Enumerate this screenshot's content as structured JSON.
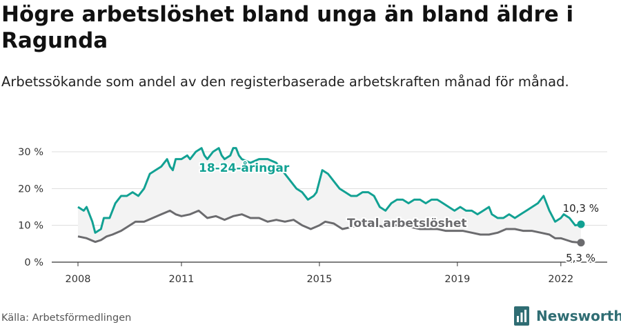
{
  "title": "Högre arbetslöshet bland unga än bland äldre i Ragunda",
  "subtitle": "Arbetssökande som andel av den registerbaserade arbetskraften månad för månad.",
  "source": "Källa: Arbetsförmedlingen",
  "brand": "Newsworthy",
  "colors": {
    "youth": "#12a193",
    "total": "#6b6b6e",
    "band": "#f3f3f3",
    "grid": "#dddddd",
    "brand": "#2f6d73"
  },
  "chart_data": {
    "type": "line",
    "x_range": [
      "2008-01",
      "2022-08"
    ],
    "x_ticks": [
      "2008",
      "2011",
      "2015",
      "2019",
      "2022"
    ],
    "ylim": [
      0,
      30
    ],
    "y_ticks": [
      "0 %",
      "10 %",
      "20 %",
      "30 %"
    ],
    "grid": true,
    "series": [
      {
        "name": "18-24-åringar",
        "end_label": "10,3 %",
        "points": [
          [
            "2008-01",
            15
          ],
          [
            "2008-03",
            14
          ],
          [
            "2008-04",
            15
          ],
          [
            "2008-06",
            11
          ],
          [
            "2008-07",
            8
          ],
          [
            "2008-09",
            9
          ],
          [
            "2008-10",
            12
          ],
          [
            "2008-12",
            12
          ],
          [
            "2009-02",
            16
          ],
          [
            "2009-03",
            17
          ],
          [
            "2009-04",
            18
          ],
          [
            "2009-06",
            18
          ],
          [
            "2009-08",
            19
          ],
          [
            "2009-10",
            18
          ],
          [
            "2009-12",
            20
          ],
          [
            "2010-02",
            24
          ],
          [
            "2010-04",
            25
          ],
          [
            "2010-06",
            26
          ],
          [
            "2010-08",
            28
          ],
          [
            "2010-09",
            26
          ],
          [
            "2010-10",
            25
          ],
          [
            "2010-11",
            28
          ],
          [
            "2011-01",
            28
          ],
          [
            "2011-03",
            29
          ],
          [
            "2011-04",
            28
          ],
          [
            "2011-06",
            30
          ],
          [
            "2011-08",
            31
          ],
          [
            "2011-09",
            29
          ],
          [
            "2011-10",
            28
          ],
          [
            "2011-12",
            30
          ],
          [
            "2012-02",
            31
          ],
          [
            "2012-03",
            29
          ],
          [
            "2012-04",
            28
          ],
          [
            "2012-06",
            29
          ],
          [
            "2012-07",
            31
          ],
          [
            "2012-08",
            31
          ],
          [
            "2012-09",
            29
          ],
          [
            "2012-10",
            28
          ],
          [
            "2013-01",
            27
          ],
          [
            "2013-04",
            28
          ],
          [
            "2013-07",
            28
          ],
          [
            "2013-10",
            27
          ],
          [
            "2014-01",
            24
          ],
          [
            "2014-03",
            22
          ],
          [
            "2014-05",
            20
          ],
          [
            "2014-07",
            19
          ],
          [
            "2014-09",
            17
          ],
          [
            "2014-11",
            18
          ],
          [
            "2014-12",
            19
          ],
          [
            "2015-01",
            22
          ],
          [
            "2015-02",
            25
          ],
          [
            "2015-04",
            24
          ],
          [
            "2015-06",
            22
          ],
          [
            "2015-08",
            20
          ],
          [
            "2015-10",
            19
          ],
          [
            "2015-12",
            18
          ],
          [
            "2016-02",
            18
          ],
          [
            "2016-04",
            19
          ],
          [
            "2016-06",
            19
          ],
          [
            "2016-08",
            18
          ],
          [
            "2016-10",
            15
          ],
          [
            "2016-12",
            14
          ],
          [
            "2017-02",
            16
          ],
          [
            "2017-04",
            17
          ],
          [
            "2017-06",
            17
          ],
          [
            "2017-08",
            16
          ],
          [
            "2017-10",
            17
          ],
          [
            "2017-12",
            17
          ],
          [
            "2018-02",
            16
          ],
          [
            "2018-04",
            17
          ],
          [
            "2018-06",
            17
          ],
          [
            "2018-08",
            16
          ],
          [
            "2018-10",
            15
          ],
          [
            "2018-12",
            14
          ],
          [
            "2019-02",
            15
          ],
          [
            "2019-04",
            14
          ],
          [
            "2019-06",
            14
          ],
          [
            "2019-08",
            13
          ],
          [
            "2019-10",
            14
          ],
          [
            "2019-12",
            15
          ],
          [
            "2020-01",
            13
          ],
          [
            "2020-03",
            12
          ],
          [
            "2020-05",
            12
          ],
          [
            "2020-07",
            13
          ],
          [
            "2020-09",
            12
          ],
          [
            "2020-11",
            13
          ],
          [
            "2021-01",
            14
          ],
          [
            "2021-03",
            15
          ],
          [
            "2021-05",
            16
          ],
          [
            "2021-06",
            17
          ],
          [
            "2021-07",
            18
          ],
          [
            "2021-09",
            14
          ],
          [
            "2021-11",
            11
          ],
          [
            "2022-01",
            12
          ],
          [
            "2022-02",
            13
          ],
          [
            "2022-04",
            12
          ],
          [
            "2022-06",
            10
          ],
          [
            "2022-08",
            10.3
          ]
        ]
      },
      {
        "name": "Total arbetslöshet",
        "end_label": "5,3 %",
        "points": [
          [
            "2008-01",
            7
          ],
          [
            "2008-04",
            6.5
          ],
          [
            "2008-07",
            5.5
          ],
          [
            "2008-09",
            6
          ],
          [
            "2008-11",
            7
          ],
          [
            "2009-01",
            7.5
          ],
          [
            "2009-04",
            8.5
          ],
          [
            "2009-06",
            9.5
          ],
          [
            "2009-09",
            11
          ],
          [
            "2009-12",
            11
          ],
          [
            "2010-03",
            12
          ],
          [
            "2010-06",
            13
          ],
          [
            "2010-09",
            14
          ],
          [
            "2010-11",
            13
          ],
          [
            "2011-01",
            12.5
          ],
          [
            "2011-04",
            13
          ],
          [
            "2011-07",
            14
          ],
          [
            "2011-10",
            12
          ],
          [
            "2012-01",
            12.5
          ],
          [
            "2012-04",
            11.5
          ],
          [
            "2012-07",
            12.5
          ],
          [
            "2012-10",
            13
          ],
          [
            "2013-01",
            12
          ],
          [
            "2013-04",
            12
          ],
          [
            "2013-07",
            11
          ],
          [
            "2013-10",
            11.5
          ],
          [
            "2014-01",
            11
          ],
          [
            "2014-04",
            11.5
          ],
          [
            "2014-07",
            10
          ],
          [
            "2014-10",
            9
          ],
          [
            "2015-01",
            10
          ],
          [
            "2015-03",
            11
          ],
          [
            "2015-06",
            10.5
          ],
          [
            "2015-09",
            9
          ],
          [
            "2015-12",
            9.5
          ],
          [
            "2016-03",
            10
          ],
          [
            "2016-06",
            10.5
          ],
          [
            "2016-09",
            10
          ],
          [
            "2016-12",
            9.5
          ],
          [
            "2017-03",
            10
          ],
          [
            "2017-06",
            10
          ],
          [
            "2017-09",
            9.5
          ],
          [
            "2017-12",
            9
          ],
          [
            "2018-03",
            9
          ],
          [
            "2018-06",
            9
          ],
          [
            "2018-09",
            8.5
          ],
          [
            "2018-12",
            8.5
          ],
          [
            "2019-03",
            8.5
          ],
          [
            "2019-06",
            8
          ],
          [
            "2019-09",
            7.5
          ],
          [
            "2019-12",
            7.5
          ],
          [
            "2020-03",
            8
          ],
          [
            "2020-06",
            9
          ],
          [
            "2020-09",
            9
          ],
          [
            "2020-12",
            8.5
          ],
          [
            "2021-03",
            8.5
          ],
          [
            "2021-06",
            8
          ],
          [
            "2021-09",
            7.5
          ],
          [
            "2021-11",
            6.5
          ],
          [
            "2022-01",
            6.5
          ],
          [
            "2022-03",
            6
          ],
          [
            "2022-05",
            5.5
          ],
          [
            "2022-08",
            5.3
          ]
        ]
      }
    ]
  }
}
